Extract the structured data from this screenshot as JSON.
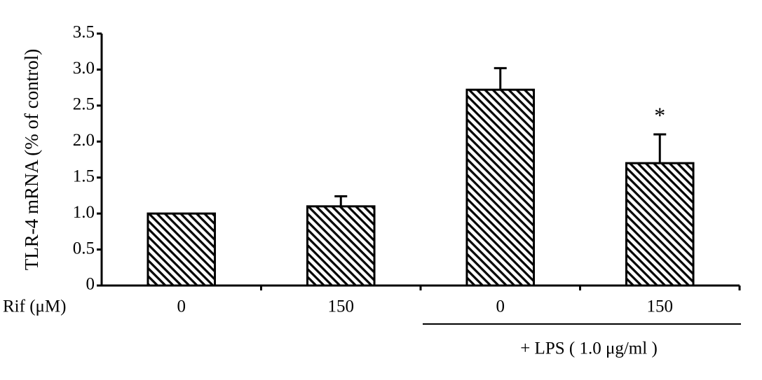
{
  "chart_data": {
    "type": "bar",
    "ylabel": "TLR-4 mRNA (% of control)",
    "xlabel": "Rif (μM)",
    "categories": [
      "0",
      "150",
      "0",
      "150"
    ],
    "values": [
      1.0,
      1.1,
      2.72,
      1.7
    ],
    "errors": [
      null,
      0.14,
      0.3,
      0.4
    ],
    "significance": [
      null,
      null,
      null,
      "*"
    ],
    "group_label": "+ LPS ( 1.0 μg/ml )",
    "color": "#000000",
    "ylim": [
      0,
      3.5
    ],
    "yticks": [
      0,
      0.5,
      {
        "value": 1,
        "label": "1.0"
      },
      1.5,
      {
        "value": 2,
        "label": "2.0"
      },
      2.5,
      {
        "value": 3,
        "label": "3.0"
      },
      3.5
    ],
    "grid": false
  }
}
